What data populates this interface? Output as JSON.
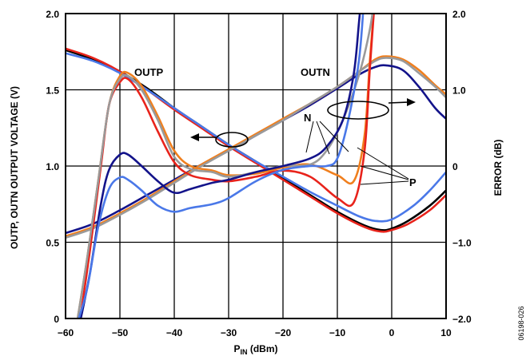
{
  "chart_data": {
    "type": "line",
    "title": "",
    "xlabel": {
      "main": "P",
      "sub": "IN",
      "rest": " (dBm)"
    },
    "ylabel_left": "OUTP, OUTN OUTPUT VOLTAGE (V)",
    "ylabel_right": "ERROR (dB)",
    "xlim": [
      -60,
      10
    ],
    "ylim_left": [
      0,
      2.0
    ],
    "ylim_right": [
      -2.0,
      2.0
    ],
    "grid": true,
    "x_ticks": [
      "−60",
      "−50",
      "−40",
      "−30",
      "−20",
      "−10",
      "0",
      "10"
    ],
    "y_left_ticks": [
      "0",
      "0.5",
      "1.0",
      "1.5",
      "2.0"
    ],
    "y_right_ticks": [
      "−2.0",
      "−1.0",
      "0",
      "1.0",
      "2.0"
    ],
    "annotations": {
      "outp": "OUTP",
      "outn": "OUTN",
      "n": "N",
      "p": "P"
    },
    "figure_id": "06198-026",
    "colors": {
      "black": "#000000",
      "red": "#e8231b",
      "navy": "#13138a",
      "blue": "#4a78e8",
      "orange": "#f07f1e",
      "gray": "#9a9a9a"
    },
    "series": [
      {
        "axis": "left",
        "color": "black",
        "points": [
          [
            -60,
            1.76
          ],
          [
            -55,
            1.7
          ],
          [
            -50,
            1.62
          ],
          [
            -45,
            1.51
          ],
          [
            -40,
            1.38
          ],
          [
            -35,
            1.26
          ],
          [
            -30,
            1.14
          ],
          [
            -25,
            1.03
          ],
          [
            -20,
            0.92
          ],
          [
            -15,
            0.81
          ],
          [
            -10,
            0.7
          ],
          [
            -5,
            0.61
          ],
          [
            -2,
            0.58
          ],
          [
            0,
            0.59
          ],
          [
            3,
            0.64
          ],
          [
            7,
            0.74
          ],
          [
            10,
            0.84
          ]
        ]
      },
      {
        "axis": "left",
        "color": "red",
        "points": [
          [
            -60,
            1.77
          ],
          [
            -55,
            1.71
          ],
          [
            -50,
            1.62
          ],
          [
            -45,
            1.5
          ],
          [
            -40,
            1.37
          ],
          [
            -35,
            1.25
          ],
          [
            -30,
            1.13
          ],
          [
            -25,
            1.02
          ],
          [
            -20,
            0.91
          ],
          [
            -15,
            0.8
          ],
          [
            -10,
            0.69
          ],
          [
            -5,
            0.6
          ],
          [
            -2,
            0.57
          ],
          [
            0,
            0.58
          ],
          [
            3,
            0.62
          ],
          [
            7,
            0.71
          ],
          [
            10,
            0.81
          ]
        ]
      },
      {
        "axis": "left",
        "color": "blue",
        "points": [
          [
            -60,
            1.74
          ],
          [
            -55,
            1.69
          ],
          [
            -50,
            1.61
          ],
          [
            -45,
            1.5
          ],
          [
            -40,
            1.38
          ],
          [
            -35,
            1.26
          ],
          [
            -30,
            1.14
          ],
          [
            -25,
            1.03
          ],
          [
            -20,
            0.93
          ],
          [
            -15,
            0.83
          ],
          [
            -10,
            0.74
          ],
          [
            -6,
            0.67
          ],
          [
            -3,
            0.64
          ],
          [
            0,
            0.65
          ],
          [
            4,
            0.74
          ],
          [
            7,
            0.84
          ],
          [
            10,
            0.96
          ]
        ]
      },
      {
        "axis": "left",
        "color": "navy",
        "points": [
          [
            -60,
            0.56
          ],
          [
            -55,
            0.62
          ],
          [
            -50,
            0.71
          ],
          [
            -45,
            0.81
          ],
          [
            -40,
            0.91
          ],
          [
            -35,
            1.01
          ],
          [
            -30,
            1.1
          ],
          [
            -25,
            1.2
          ],
          [
            -20,
            1.3
          ],
          [
            -15,
            1.4
          ],
          [
            -10,
            1.51
          ],
          [
            -6,
            1.6
          ],
          [
            -3,
            1.65
          ],
          [
            -1,
            1.66
          ],
          [
            2,
            1.63
          ],
          [
            5,
            1.52
          ],
          [
            8,
            1.38
          ],
          [
            10,
            1.31
          ]
        ]
      },
      {
        "axis": "left",
        "color": "orange",
        "points": [
          [
            -60,
            0.54
          ],
          [
            -55,
            0.6
          ],
          [
            -50,
            0.69
          ],
          [
            -45,
            0.79
          ],
          [
            -40,
            0.9
          ],
          [
            -35,
            1.01
          ],
          [
            -30,
            1.11
          ],
          [
            -25,
            1.21
          ],
          [
            -20,
            1.31
          ],
          [
            -15,
            1.41
          ],
          [
            -10,
            1.52
          ],
          [
            -6,
            1.62
          ],
          [
            -3,
            1.7
          ],
          [
            -1,
            1.72
          ],
          [
            2,
            1.7
          ],
          [
            5,
            1.63
          ],
          [
            8,
            1.53
          ],
          [
            10,
            1.47
          ]
        ]
      },
      {
        "axis": "left",
        "color": "gray",
        "points": [
          [
            -60,
            0.53
          ],
          [
            -55,
            0.59
          ],
          [
            -50,
            0.68
          ],
          [
            -45,
            0.78
          ],
          [
            -40,
            0.89
          ],
          [
            -35,
            1.0
          ],
          [
            -30,
            1.1
          ],
          [
            -25,
            1.2
          ],
          [
            -20,
            1.3
          ],
          [
            -15,
            1.41
          ],
          [
            -10,
            1.52
          ],
          [
            -6,
            1.62
          ],
          [
            -3,
            1.69
          ],
          [
            -1,
            1.71
          ],
          [
            2,
            1.69
          ],
          [
            5,
            1.61
          ],
          [
            8,
            1.52
          ],
          [
            10,
            1.45
          ]
        ]
      },
      {
        "axis": "right",
        "color": "orange",
        "points": [
          [
            -58,
            -2.1
          ],
          [
            -56,
            -1.2
          ],
          [
            -54,
            -0.2
          ],
          [
            -52,
            0.8
          ],
          [
            -50,
            1.18
          ],
          [
            -48.5,
            1.22
          ],
          [
            -46,
            1.05
          ],
          [
            -43,
            0.65
          ],
          [
            -40,
            0.2
          ],
          [
            -37,
            0.0
          ],
          [
            -33,
            -0.06
          ],
          [
            -30,
            -0.12
          ],
          [
            -25,
            -0.1
          ],
          [
            -20,
            -0.02
          ],
          [
            -15,
            0.02
          ],
          [
            -10,
            -0.12
          ],
          [
            -7,
            -0.2
          ],
          [
            -5,
            0.4
          ],
          [
            -4,
            1.4
          ],
          [
            -3,
            2.3
          ]
        ]
      },
      {
        "axis": "right",
        "color": "red",
        "points": [
          [
            -57.5,
            -2.1
          ],
          [
            -55.5,
            -1.1
          ],
          [
            -53.5,
            0.0
          ],
          [
            -52,
            0.8
          ],
          [
            -50,
            1.1
          ],
          [
            -48.5,
            1.14
          ],
          [
            -46,
            0.9
          ],
          [
            -43,
            0.45
          ],
          [
            -40,
            0.05
          ],
          [
            -37,
            -0.12
          ],
          [
            -33,
            -0.18
          ],
          [
            -30,
            -0.2
          ],
          [
            -25,
            -0.14
          ],
          [
            -20,
            -0.06
          ],
          [
            -15,
            -0.14
          ],
          [
            -10,
            -0.42
          ],
          [
            -7,
            -0.48
          ],
          [
            -5,
            0.2
          ],
          [
            -4,
            1.3
          ],
          [
            -3,
            2.3
          ]
        ]
      },
      {
        "axis": "right",
        "color": "gray",
        "points": [
          [
            -58,
            -2.1
          ],
          [
            -56,
            -1.2
          ],
          [
            -54,
            -0.2
          ],
          [
            -52,
            0.8
          ],
          [
            -50,
            1.14
          ],
          [
            -48.5,
            1.18
          ],
          [
            -46,
            1.0
          ],
          [
            -43,
            0.6
          ],
          [
            -40,
            0.12
          ],
          [
            -37,
            -0.04
          ],
          [
            -33,
            -0.08
          ],
          [
            -30,
            -0.14
          ],
          [
            -25,
            -0.08
          ],
          [
            -20,
            0.0
          ],
          [
            -15,
            0.02
          ],
          [
            -12,
            0.2
          ],
          [
            -9,
            0.6
          ],
          [
            -6,
            1.2
          ],
          [
            -4,
            1.8
          ],
          [
            -3,
            2.3
          ]
        ]
      },
      {
        "axis": "right",
        "color": "navy",
        "points": [
          [
            -57.5,
            -2.1
          ],
          [
            -55.5,
            -1.4
          ],
          [
            -53.5,
            -0.5
          ],
          [
            -52,
            -0.05
          ],
          [
            -50,
            0.15
          ],
          [
            -48.5,
            0.15
          ],
          [
            -46,
            0.0
          ],
          [
            -43,
            -0.2
          ],
          [
            -40,
            -0.35
          ],
          [
            -37,
            -0.3
          ],
          [
            -33,
            -0.22
          ],
          [
            -30,
            -0.18
          ],
          [
            -25,
            -0.08
          ],
          [
            -20,
            0.0
          ],
          [
            -15,
            0.1
          ],
          [
            -12,
            0.25
          ],
          [
            -9,
            0.6
          ],
          [
            -7,
            1.2
          ],
          [
            -6,
            1.9
          ],
          [
            -5.5,
            2.3
          ]
        ]
      },
      {
        "axis": "right",
        "color": "blue",
        "points": [
          [
            -58,
            -2.1
          ],
          [
            -56,
            -1.6
          ],
          [
            -54,
            -0.8
          ],
          [
            -52,
            -0.3
          ],
          [
            -50,
            -0.15
          ],
          [
            -48.5,
            -0.18
          ],
          [
            -46,
            -0.32
          ],
          [
            -43,
            -0.52
          ],
          [
            -40,
            -0.6
          ],
          [
            -37,
            -0.55
          ],
          [
            -33,
            -0.5
          ],
          [
            -30,
            -0.42
          ],
          [
            -25,
            -0.2
          ],
          [
            -20,
            -0.05
          ],
          [
            -15,
            0.0
          ],
          [
            -12,
            0.0
          ],
          [
            -10,
            0.1
          ],
          [
            -8,
            0.6
          ],
          [
            -6,
            1.4
          ],
          [
            -5,
            2.3
          ]
        ]
      }
    ]
  }
}
